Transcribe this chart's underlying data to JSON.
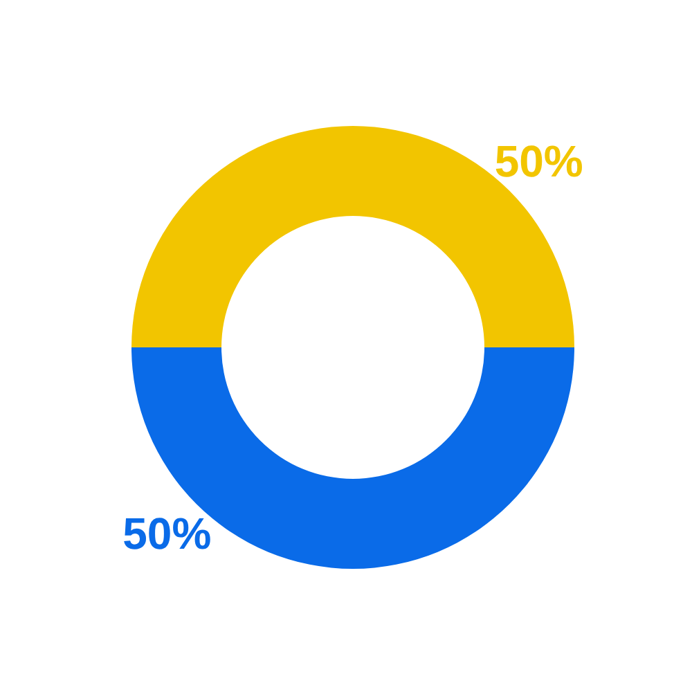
{
  "chart_data": {
    "type": "donut",
    "categories": [
      null,
      null
    ],
    "values": [
      50,
      50
    ],
    "colors": [
      "#f2c500",
      "#0a6be8"
    ],
    "value_labels": [
      "50%",
      "50%"
    ]
  }
}
